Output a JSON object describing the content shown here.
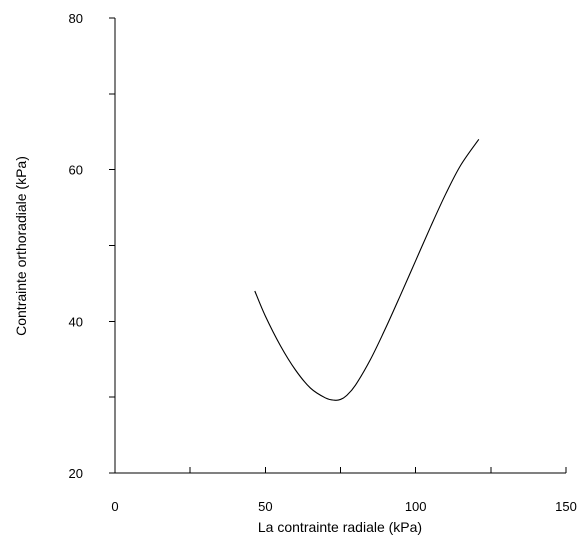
{
  "chart_data": {
    "type": "line",
    "title": "",
    "xlabel": "La contrainte radiale (kPa)",
    "ylabel": "Contrainte orthoradiale (kPa)",
    "xlim": [
      0,
      150
    ],
    "ylim": [
      20,
      80
    ],
    "x_major_ticks": [
      0,
      50,
      100,
      150
    ],
    "x_minor_ticks": [
      25,
      75,
      125
    ],
    "y_major_ticks": [
      20,
      40,
      60,
      80
    ],
    "y_minor_ticks": [
      30,
      50,
      70
    ],
    "x_tick_labels": [
      "0",
      "50",
      "100",
      "150"
    ],
    "y_tick_labels": [
      "20",
      "40",
      "60",
      "80"
    ],
    "grid": false,
    "series": [
      {
        "x": [
          46.5,
          50,
          55,
          60,
          65,
          70,
          73,
          75,
          77,
          80,
          85,
          90,
          95,
          100,
          105,
          110,
          115,
          121
        ],
        "y": [
          44.0,
          40.7,
          36.8,
          33.6,
          31.2,
          29.9,
          29.6,
          29.7,
          30.2,
          31.6,
          35.0,
          39.1,
          43.5,
          48.0,
          52.5,
          56.8,
          60.6,
          64.0
        ]
      }
    ],
    "colors": {
      "line": "#000000",
      "axes": "#000000",
      "background": "#ffffff"
    }
  }
}
